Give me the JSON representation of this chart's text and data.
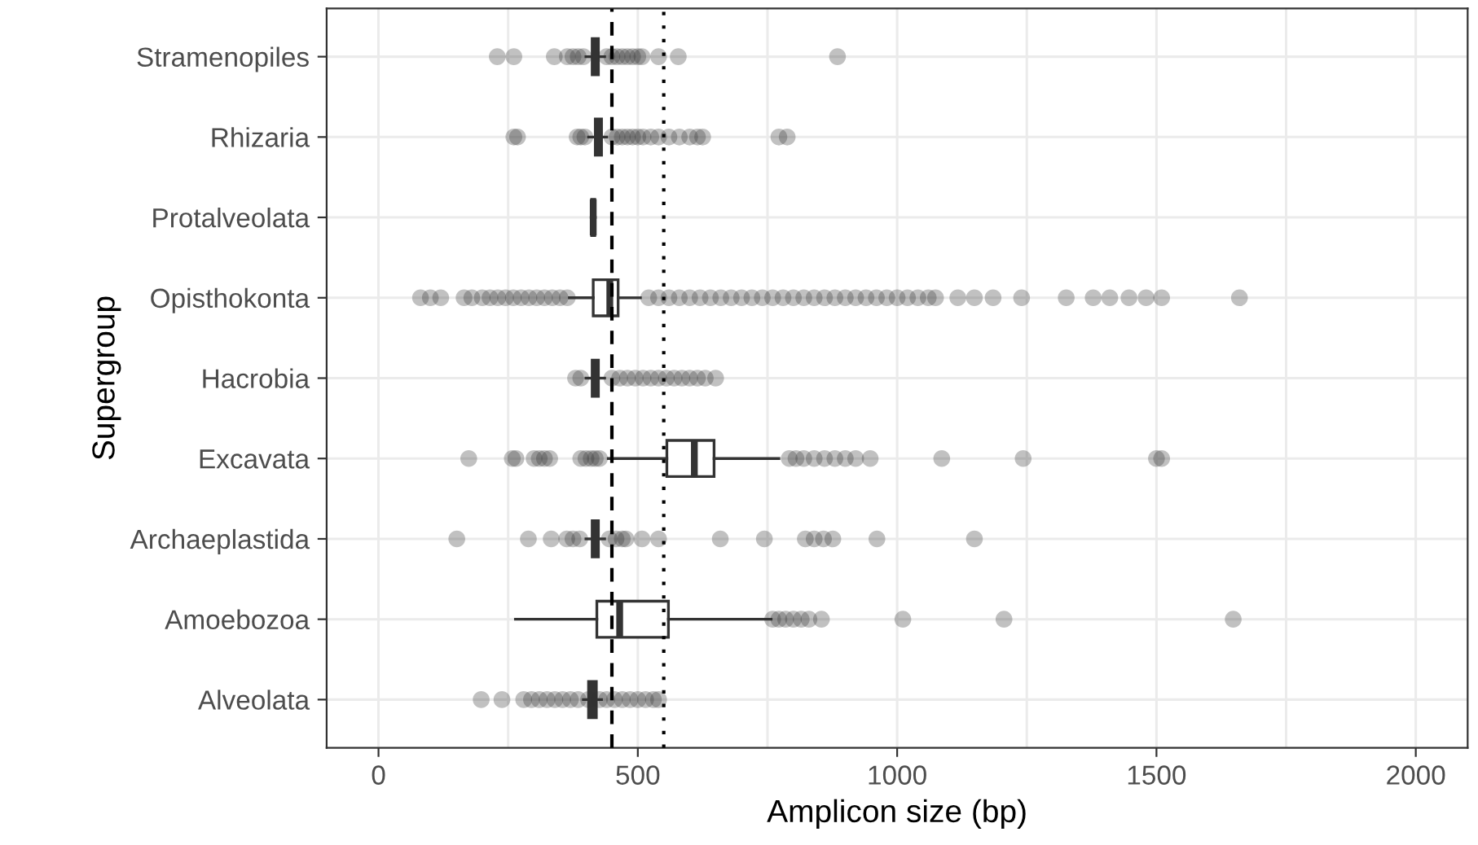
{
  "chart_data": {
    "type": "box",
    "orientation": "horizontal",
    "xlabel": "Amplicon size (bp)",
    "ylabel": "Supergroup",
    "color": "#333333",
    "categories": [
      "Stramenopiles",
      "Rhizaria",
      "Protalveolata",
      "Opisthokonta",
      "Hacrobia",
      "Excavata",
      "Archaeplastida",
      "Amoebozoa",
      "Alveolata"
    ],
    "boxes": [
      {
        "low": 400,
        "q1": 412,
        "median": 418,
        "q3": 424,
        "high": 436,
        "outliers": [
          229,
          261,
          339,
          364,
          375,
          385,
          395,
          440,
          450,
          460,
          470,
          480,
          490,
          500,
          508,
          540,
          578,
          885
        ]
      },
      {
        "low": 405,
        "q1": 418,
        "median": 424,
        "q3": 430,
        "high": 440,
        "outliers": [
          261,
          268,
          383,
          390,
          398,
          450,
          460,
          470,
          480,
          490,
          500,
          510,
          525,
          540,
          560,
          580,
          600,
          615,
          625,
          772,
          788
        ]
      },
      {
        "low": 410,
        "q1": 411,
        "median": 414,
        "q3": 417,
        "high": 418
      },
      {
        "low": 368,
        "q1": 414,
        "median": 446,
        "q3": 462,
        "high": 505,
        "outliers": [
          81,
          100,
          120,
          165,
          180,
          200,
          215,
          230,
          245,
          260,
          275,
          290,
          305,
          320,
          335,
          350,
          364,
          521,
          540,
          560,
          580,
          600,
          620,
          640,
          660,
          680,
          700,
          720,
          740,
          760,
          780,
          800,
          820,
          840,
          860,
          880,
          900,
          920,
          940,
          960,
          980,
          1000,
          1020,
          1040,
          1060,
          1074,
          1117,
          1149,
          1185,
          1240,
          1326,
          1378,
          1410,
          1447,
          1480,
          1510,
          1660
        ]
      },
      {
        "low": 400,
        "q1": 412,
        "median": 418,
        "q3": 424,
        "high": 436,
        "outliers": [
          380,
          390,
          450,
          465,
          480,
          495,
          510,
          525,
          540,
          555,
          570,
          585,
          600,
          615,
          630,
          650
        ]
      },
      {
        "low": 443,
        "q1": 556,
        "median": 609,
        "q3": 647,
        "high": 772,
        "outliers": [
          174,
          258,
          265,
          300,
          310,
          320,
          330,
          390,
          400,
          410,
          418,
          426,
          792,
          805,
          820,
          840,
          860,
          880,
          900,
          920,
          948,
          1086,
          1243,
          1500,
          1510
        ]
      },
      {
        "low": 400,
        "q1": 412,
        "median": 418,
        "q3": 424,
        "high": 436,
        "outliers": [
          151,
          289,
          333,
          363,
          375,
          388,
          445,
          458,
          470,
          477,
          508,
          540,
          659,
          744,
          823,
          840,
          858,
          876,
          961,
          1149
        ]
      },
      {
        "low": 264,
        "q1": 421,
        "median": 465,
        "q3": 559,
        "high": 757,
        "outliers": [
          760,
          772,
          785,
          800,
          815,
          830,
          854,
          1011,
          1206,
          1648
        ]
      },
      {
        "low": 395,
        "q1": 405,
        "median": 414,
        "q3": 420,
        "high": 430,
        "outliers": [
          198,
          238,
          280,
          295,
          310,
          325,
          340,
          355,
          370,
          385,
          405,
          426,
          440,
          455,
          470,
          485,
          500,
          515,
          530,
          540
        ]
      }
    ],
    "ref_lines": [
      {
        "axis": "x",
        "value": 450,
        "line_style": "dashed"
      },
      {
        "axis": "x",
        "value": 550,
        "line_style": "dotted"
      }
    ],
    "xlim": [
      -100,
      2100
    ],
    "xticks": [
      0,
      {
        "value": 250,
        "label": null
      },
      500,
      {
        "value": 750,
        "label": null
      },
      1000,
      {
        "value": 1250,
        "label": null
      },
      1500,
      {
        "value": 1750,
        "label": null
      },
      2000
    ],
    "grid": true,
    "legend": false
  }
}
